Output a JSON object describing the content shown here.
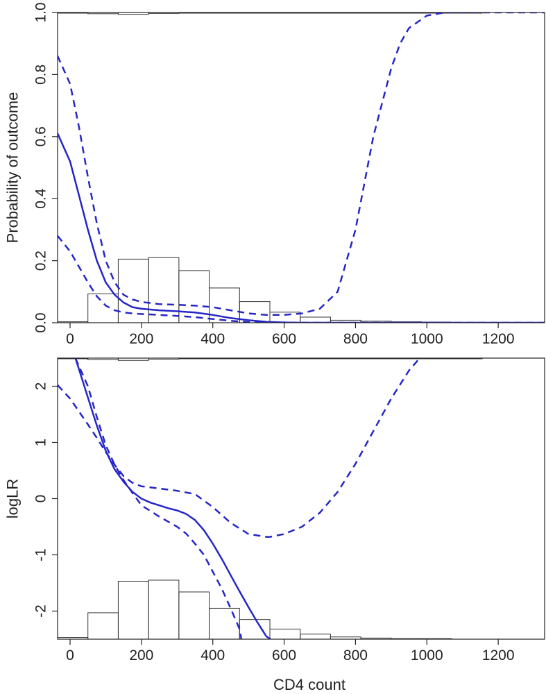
{
  "chart_data": [
    {
      "type": "line",
      "title": "",
      "xlabel": "",
      "ylabel": "Probability of outcome",
      "xlim": [
        -35,
        1330
      ],
      "ylim": [
        0,
        1
      ],
      "x_ticks": [
        0,
        200,
        400,
        600,
        800,
        1000,
        1200
      ],
      "x_tick_labels": [
        "0",
        "200",
        "400",
        "600",
        "800",
        "1000",
        "1200"
      ],
      "y_ticks": [
        0,
        0.2,
        0.4,
        0.6,
        0.8,
        1
      ],
      "y_tick_labels": [
        "0.0",
        "0.2",
        "0.4",
        "0.6",
        "0.8",
        "1.0"
      ],
      "grid": false,
      "line_color": "#2626c8",
      "series": [
        {
          "style": "solid",
          "x": [
            -35,
            0,
            25,
            50,
            75,
            100,
            125,
            150,
            175,
            200,
            250,
            300,
            350,
            400,
            450,
            500,
            550,
            600,
            650,
            700,
            800,
            1000,
            1200,
            1330
          ],
          "y": [
            0.61,
            0.52,
            0.41,
            0.3,
            0.2,
            0.13,
            0.09,
            0.065,
            0.05,
            0.045,
            0.04,
            0.037,
            0.033,
            0.025,
            0.015,
            0.008,
            0.003,
            0.001,
            0,
            0,
            0,
            0,
            0,
            0
          ]
        },
        {
          "style": "dashed",
          "x": [
            -35,
            0,
            25,
            50,
            75,
            100,
            125,
            150,
            175,
            200,
            250,
            300,
            350,
            400,
            450,
            500,
            550,
            600,
            650,
            700,
            750,
            800,
            850,
            900,
            925,
            950,
            1000,
            1050,
            1100,
            1150,
            1200,
            1330
          ],
          "y": [
            0.86,
            0.77,
            0.63,
            0.47,
            0.32,
            0.2,
            0.13,
            0.09,
            0.075,
            0.067,
            0.06,
            0.058,
            0.055,
            0.05,
            0.04,
            0.03,
            0.025,
            0.025,
            0.03,
            0.045,
            0.1,
            0.3,
            0.6,
            0.82,
            0.9,
            0.95,
            0.99,
            1,
            1,
            1,
            1,
            1
          ]
        },
        {
          "style": "dashed",
          "x": [
            -35,
            0,
            25,
            50,
            75,
            100,
            125,
            150,
            175,
            200,
            250,
            300,
            350,
            400,
            450,
            500,
            550,
            600,
            650,
            700,
            1330
          ],
          "y": [
            0.28,
            0.23,
            0.18,
            0.13,
            0.085,
            0.055,
            0.04,
            0.033,
            0.03,
            0.028,
            0.025,
            0.022,
            0.018,
            0.012,
            0.006,
            0.002,
            0,
            0,
            0,
            0,
            0
          ]
        }
      ],
      "histogram": {
        "bin_edges": [
          -35,
          50,
          135,
          220,
          305,
          390,
          475,
          560,
          645,
          730,
          815,
          900,
          985,
          1070,
          1155
        ],
        "counts": [
          0.003,
          0.093,
          0.205,
          0.21,
          0.168,
          0.112,
          0.068,
          0.034,
          0.018,
          0.008,
          0.005,
          0.003,
          0.002,
          0.001
        ],
        "top_counts": [
          0,
          0.004,
          0.006,
          0.003,
          0.002,
          0.001,
          0.0005,
          0,
          0,
          0,
          0,
          0,
          0,
          0
        ]
      }
    },
    {
      "type": "line",
      "title": "",
      "xlabel": "CD4 count",
      "ylabel": "logLR",
      "xlim": [
        -35,
        1330
      ],
      "ylim": [
        -2.5,
        2.5
      ],
      "x_ticks": [
        0,
        200,
        400,
        600,
        800,
        1000,
        1200
      ],
      "x_tick_labels": [
        "0",
        "200",
        "400",
        "600",
        "800",
        "1000",
        "1200"
      ],
      "y_ticks": [
        -2,
        -1,
        0,
        1,
        2
      ],
      "y_tick_labels": [
        "-2",
        "-1",
        "0",
        "1",
        "2"
      ],
      "grid": false,
      "line_color": "#2626c8",
      "series": [
        {
          "style": "solid",
          "x": [
            15,
            25,
            50,
            75,
            100,
            125,
            150,
            175,
            200,
            225,
            250,
            275,
            300,
            325,
            350,
            375,
            400,
            425,
            450,
            475,
            500,
            525,
            550,
            562
          ],
          "y": [
            2.5,
            2.3,
            1.8,
            1.3,
            0.85,
            0.52,
            0.3,
            0.12,
            0.0,
            -0.07,
            -0.12,
            -0.17,
            -0.21,
            -0.27,
            -0.38,
            -0.56,
            -0.8,
            -1.07,
            -1.36,
            -1.65,
            -1.93,
            -2.2,
            -2.45,
            -2.5
          ]
        },
        {
          "style": "dashed",
          "x": [
            -35,
            0,
            25,
            50,
            75,
            100,
            125,
            150,
            175,
            200,
            250,
            300,
            350,
            400,
            450,
            500,
            550,
            560,
            600,
            650,
            700,
            750,
            800,
            850,
            900,
            950,
            980
          ],
          "y": [
            2.02,
            1.78,
            1.55,
            1.32,
            1.08,
            0.83,
            0.6,
            0.4,
            0.28,
            0.22,
            0.18,
            0.14,
            0.08,
            -0.15,
            -0.43,
            -0.63,
            -0.68,
            -0.68,
            -0.63,
            -0.5,
            -0.25,
            0.12,
            0.62,
            1.2,
            1.78,
            2.28,
            2.5
          ]
        },
        {
          "style": "dashed",
          "x": [
            15,
            50,
            75,
            100,
            125,
            150,
            175,
            200,
            250,
            300,
            325,
            350,
            375,
            400,
            425,
            450,
            475,
            480
          ],
          "y": [
            2.5,
            2.0,
            1.45,
            0.95,
            0.6,
            0.33,
            0.1,
            -0.12,
            -0.32,
            -0.5,
            -0.62,
            -0.8,
            -1.0,
            -1.3,
            -1.6,
            -1.95,
            -2.32,
            -2.5
          ]
        }
      ],
      "histogram": {
        "bin_edges": [
          -35,
          50,
          135,
          220,
          305,
          390,
          475,
          560,
          645,
          730,
          815,
          900,
          985,
          1070,
          1155
        ],
        "counts": [
          -2.47,
          -2.03,
          -1.47,
          -1.45,
          -1.66,
          -1.95,
          -2.15,
          -2.32,
          -2.41,
          -2.46,
          -2.48,
          -2.49,
          -2.49,
          -2.5
        ],
        "top_counts": [
          2.5,
          2.47,
          2.46,
          2.48,
          2.49,
          2.5,
          2.5,
          2.5,
          2.5,
          2.5,
          2.5,
          2.5,
          2.5,
          2.5
        ]
      }
    }
  ]
}
